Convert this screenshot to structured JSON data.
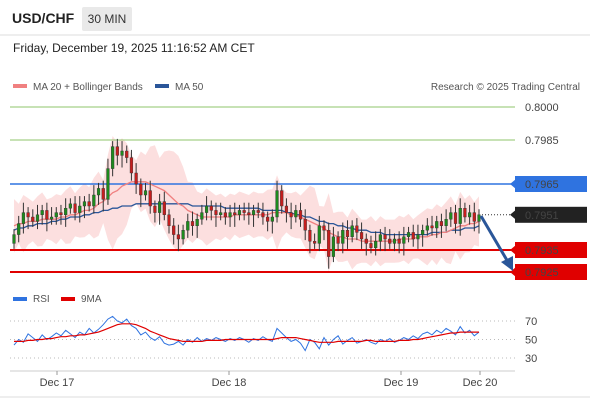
{
  "header": {
    "symbol": "USD/CHF",
    "timeframe": "30 MIN",
    "datetime": "Friday, December 19, 2025 11:16:52 AM CET"
  },
  "legend": {
    "ma20": "MA 20 + Bollinger Bands",
    "ma50": "MA 50",
    "credit": "Research © 2025 Trading Central"
  },
  "colors": {
    "ma20": "#f08080",
    "ma50": "#2a5699",
    "bands": "#fbd9d9",
    "resistance": "#2f73e0",
    "support": "#e00000",
    "target_green": "#8fc46b",
    "candle_up": "#1e8a1e",
    "candle_down": "#c41e1e",
    "rsi": "#2f73e0",
    "rsi_ma": "#e00000",
    "arrow": "#2a5699"
  },
  "chart_data": [
    {
      "type": "candlestick",
      "title": "USD/CHF",
      "ylim": [
        0.7915,
        0.801
      ],
      "x_ticks": [
        "Dec 17",
        "Dec 18",
        "Dec 19",
        "Dec 20"
      ],
      "levels": [
        {
          "label": "0.8000",
          "value": 0.8,
          "kind": "target"
        },
        {
          "label": "0.7985",
          "value": 0.7985,
          "kind": "target"
        },
        {
          "label": "0.7965",
          "value": 0.7965,
          "kind": "resistance"
        },
        {
          "label": "0.7951",
          "value": 0.7951,
          "kind": "last"
        },
        {
          "label": "0.7935",
          "value": 0.7935,
          "kind": "support"
        },
        {
          "label": "0.7925",
          "value": 0.7925,
          "kind": "support"
        }
      ],
      "close": [
        0.7942,
        0.7947,
        0.7952,
        0.795,
        0.7948,
        0.7951,
        0.7953,
        0.7949,
        0.795,
        0.7952,
        0.7951,
        0.7954,
        0.7956,
        0.7952,
        0.7955,
        0.7957,
        0.7955,
        0.796,
        0.7963,
        0.7958,
        0.7972,
        0.7982,
        0.7978,
        0.798,
        0.7977,
        0.797,
        0.7965,
        0.796,
        0.7962,
        0.7955,
        0.7952,
        0.7957,
        0.7951,
        0.7946,
        0.7942,
        0.794,
        0.7944,
        0.7948,
        0.7946,
        0.7949,
        0.7952,
        0.7955,
        0.7953,
        0.7951,
        0.7952,
        0.795,
        0.7952,
        0.7951,
        0.7953,
        0.7952,
        0.7951,
        0.7953,
        0.7952,
        0.795,
        0.7948,
        0.795,
        0.7962,
        0.7955,
        0.7952,
        0.795,
        0.7953,
        0.7949,
        0.7944,
        0.7939,
        0.7938,
        0.7946,
        0.7944,
        0.7932,
        0.7941,
        0.7938,
        0.7944,
        0.7941,
        0.7946,
        0.7943,
        0.794,
        0.7938,
        0.7936,
        0.7939,
        0.7942,
        0.794,
        0.7938,
        0.794,
        0.7938,
        0.7941,
        0.7943,
        0.794,
        0.7942,
        0.7944,
        0.7946,
        0.7945,
        0.7948,
        0.7946,
        0.7949,
        0.7952,
        0.7947,
        0.7954,
        0.795,
        0.7952,
        0.7948,
        0.7951
      ],
      "ma20": [
        0.7946,
        0.7947,
        0.7947,
        0.7948,
        0.7948,
        0.7948,
        0.7949,
        0.7949,
        0.7949,
        0.7949,
        0.795,
        0.795,
        0.7951,
        0.7951,
        0.7952,
        0.7953,
        0.7953,
        0.7954,
        0.7956,
        0.7957,
        0.7959,
        0.7961,
        0.7962,
        0.7964,
        0.7965,
        0.7966,
        0.7966,
        0.7966,
        0.7966,
        0.7965,
        0.7964,
        0.7963,
        0.7962,
        0.796,
        0.7958,
        0.7956,
        0.7955,
        0.7953,
        0.7952,
        0.7951,
        0.795,
        0.795,
        0.795,
        0.795,
        0.795,
        0.795,
        0.795,
        0.7951,
        0.7951,
        0.7951,
        0.7951,
        0.7951,
        0.7951,
        0.7951,
        0.7951,
        0.7952,
        0.7952,
        0.7952,
        0.7952,
        0.7951,
        0.7951,
        0.795,
        0.7949,
        0.7948,
        0.7947,
        0.7946,
        0.7945,
        0.7943,
        0.7942,
        0.7941,
        0.7941,
        0.794,
        0.794,
        0.794,
        0.7939,
        0.7939,
        0.7939,
        0.7939,
        0.7939,
        0.7939,
        0.7939,
        0.7939,
        0.794,
        0.794,
        0.794,
        0.794,
        0.7941,
        0.7941,
        0.7941,
        0.7942,
        0.7942,
        0.7943,
        0.7943,
        0.7944,
        0.7945,
        0.7946,
        0.7946,
        0.7947,
        0.7947,
        0.7948
      ],
      "ma50": [
        0.7944,
        0.7945,
        0.7945,
        0.7946,
        0.7946,
        0.7947,
        0.7947,
        0.7947,
        0.7948,
        0.7948,
        0.7949,
        0.7949,
        0.795,
        0.795,
        0.795,
        0.7951,
        0.7951,
        0.7952,
        0.7952,
        0.7953,
        0.7953,
        0.7954,
        0.7954,
        0.7955,
        0.7955,
        0.7955,
        0.7956,
        0.7956,
        0.7956,
        0.7956,
        0.7956,
        0.7956,
        0.7956,
        0.7956,
        0.7956,
        0.7956,
        0.7956,
        0.7956,
        0.7955,
        0.7955,
        0.7955,
        0.7955,
        0.7955,
        0.7955,
        0.7955,
        0.7954,
        0.7954,
        0.7954,
        0.7954,
        0.7954,
        0.7954,
        0.7954,
        0.7954,
        0.7953,
        0.7953,
        0.7953,
        0.7953,
        0.7953,
        0.7952,
        0.7952,
        0.7951,
        0.7951,
        0.795,
        0.795,
        0.7949,
        0.7948,
        0.7948,
        0.7947,
        0.7947,
        0.7946,
        0.7946,
        0.7945,
        0.7945,
        0.7944,
        0.7944,
        0.7944,
        0.7943,
        0.7943,
        0.7943,
        0.7942,
        0.7942,
        0.7942,
        0.7942,
        0.7942,
        0.7942,
        0.7942,
        0.7942,
        0.7942,
        0.7942,
        0.7943,
        0.7943,
        0.7943,
        0.7943,
        0.7944,
        0.7944,
        0.7944,
        0.7945,
        0.7945,
        0.7945,
        0.7946
      ]
    },
    {
      "type": "line",
      "legend": [
        "RSI",
        "9MA"
      ],
      "ylim": [
        25,
        78
      ],
      "y_ticks": [
        "70",
        "50",
        "30"
      ],
      "rsi": [
        44,
        50,
        47,
        56,
        52,
        48,
        55,
        50,
        53,
        57,
        54,
        60,
        56,
        52,
        58,
        55,
        62,
        57,
        61,
        66,
        72,
        75,
        70,
        68,
        72,
        65,
        62,
        55,
        58,
        52,
        49,
        53,
        46,
        44,
        45,
        48,
        44,
        50,
        47,
        52,
        48,
        51,
        49,
        52,
        50,
        48,
        51,
        49,
        52,
        50,
        47,
        51,
        49,
        53,
        50,
        48,
        62,
        57,
        52,
        48,
        50,
        46,
        38,
        50,
        47,
        40,
        52,
        44,
        50,
        54,
        45,
        49,
        52,
        46,
        48,
        50,
        47,
        45,
        50,
        48,
        51,
        47,
        49,
        52,
        50,
        54,
        51,
        56,
        58,
        55,
        60,
        57,
        62,
        59,
        55,
        64,
        57,
        60,
        54,
        58
      ],
      "rsi_ma": [
        48,
        48,
        48,
        49,
        49,
        50,
        50,
        51,
        51,
        52,
        53,
        53,
        54,
        54,
        55,
        55,
        56,
        57,
        58,
        60,
        62,
        64,
        66,
        67,
        67,
        67,
        66,
        64,
        62,
        59,
        57,
        55,
        53,
        51,
        50,
        49,
        48,
        48,
        48,
        48,
        48,
        49,
        49,
        49,
        49,
        50,
        50,
        50,
        50,
        50,
        50,
        50,
        50,
        50,
        50,
        50,
        51,
        52,
        52,
        52,
        52,
        51,
        50,
        49,
        48,
        47,
        47,
        47,
        47,
        48,
        48,
        48,
        48,
        48,
        48,
        49,
        49,
        48,
        48,
        48,
        48,
        48,
        49,
        49,
        49,
        50,
        50,
        51,
        52,
        53,
        54,
        55,
        56,
        57,
        57,
        58,
        58,
        58,
        58,
        58
      ]
    }
  ]
}
